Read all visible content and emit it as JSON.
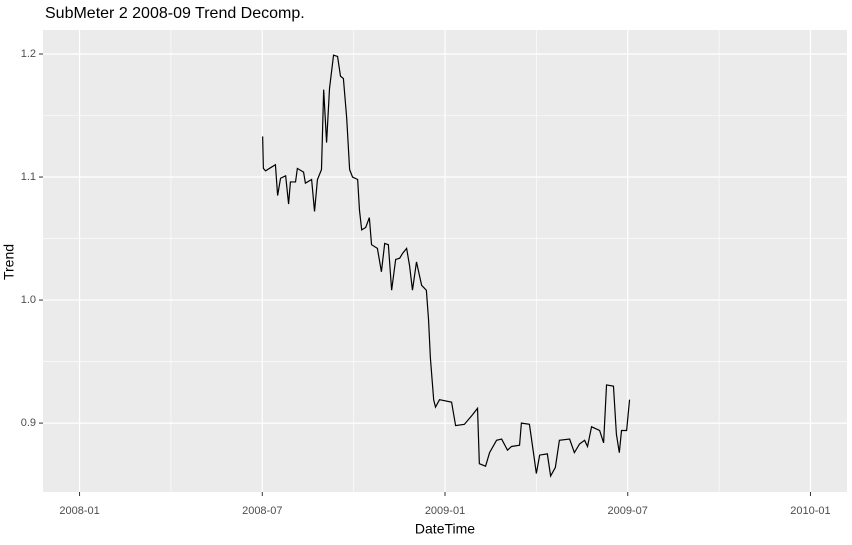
{
  "chart_data": {
    "type": "line",
    "title": "SubMeter 2 2008-09 Trend Decomp.",
    "x_label": "DateTime",
    "y_label": "Trend",
    "x": [
      2008.501,
      2008.503,
      2008.509,
      2008.525,
      2008.536,
      2008.542,
      2008.55,
      2008.564,
      2008.572,
      2008.577,
      2008.591,
      2008.596,
      2008.613,
      2008.618,
      2008.635,
      2008.643,
      2008.651,
      2008.662,
      2008.668,
      2008.676,
      2008.684,
      2008.695,
      2008.706,
      2008.714,
      2008.722,
      2008.731,
      2008.739,
      2008.747,
      2008.761,
      2008.766,
      2008.772,
      2008.783,
      2008.793,
      2008.799,
      2008.815,
      2008.826,
      2008.835,
      2008.845,
      2008.854,
      2008.865,
      2008.876,
      2008.884,
      2008.895,
      2008.903,
      2008.911,
      2008.922,
      2008.936,
      2008.949,
      2008.955,
      2008.96,
      2008.969,
      2008.974,
      2008.985,
      2009.018,
      2009.029,
      2009.053,
      2009.073,
      2009.089,
      2009.094,
      2009.111,
      2009.122,
      2009.141,
      2009.155,
      2009.171,
      2009.182,
      2009.204,
      2009.209,
      2009.231,
      2009.242,
      2009.25,
      2009.259,
      2009.28,
      2009.289,
      2009.302,
      2009.313,
      2009.341,
      2009.354,
      2009.368,
      2009.382,
      2009.39,
      2009.401,
      2009.423,
      2009.434,
      2009.442,
      2009.461,
      2009.469,
      2009.477,
      2009.483,
      2009.497,
      2009.505
    ],
    "series": [
      {
        "name": "Trend",
        "color": "#000000",
        "values": [
          1.133,
          1.107,
          1.105,
          1.108,
          1.11,
          1.085,
          1.099,
          1.101,
          1.078,
          1.096,
          1.096,
          1.107,
          1.104,
          1.095,
          1.098,
          1.072,
          1.098,
          1.106,
          1.171,
          1.128,
          1.172,
          1.199,
          1.198,
          1.182,
          1.18,
          1.148,
          1.106,
          1.1,
          1.098,
          1.073,
          1.057,
          1.059,
          1.067,
          1.045,
          1.042,
          1.023,
          1.046,
          1.045,
          1.008,
          1.033,
          1.034,
          1.038,
          1.042,
          1.028,
          1.008,
          1.031,
          1.012,
          1.008,
          0.984,
          0.953,
          0.919,
          0.913,
          0.919,
          0.917,
          0.898,
          0.899,
          0.906,
          0.912,
          0.867,
          0.865,
          0.876,
          0.886,
          0.887,
          0.878,
          0.881,
          0.882,
          0.9,
          0.899,
          0.876,
          0.859,
          0.874,
          0.875,
          0.857,
          0.864,
          0.886,
          0.887,
          0.876,
          0.883,
          0.886,
          0.881,
          0.897,
          0.894,
          0.884,
          0.931,
          0.93,
          0.891,
          0.876,
          0.894,
          0.894,
          0.919
        ]
      }
    ],
    "xlim": [
      2007.9,
      2010.1
    ],
    "xticks": [
      {
        "value": 2008,
        "label": "2008-01"
      },
      {
        "value": 2008.5,
        "label": "2008-07"
      },
      {
        "value": 2009,
        "label": "2009-01"
      },
      {
        "value": 2009.5,
        "label": "2009-07"
      },
      {
        "value": 2010,
        "label": "2010-01"
      }
    ],
    "ylim": [
      0.844,
      1.2195
    ],
    "yticks": [
      0.9,
      {
        "value": 1,
        "label": "1.0"
      },
      1.1,
      1.2
    ],
    "grid": true
  }
}
